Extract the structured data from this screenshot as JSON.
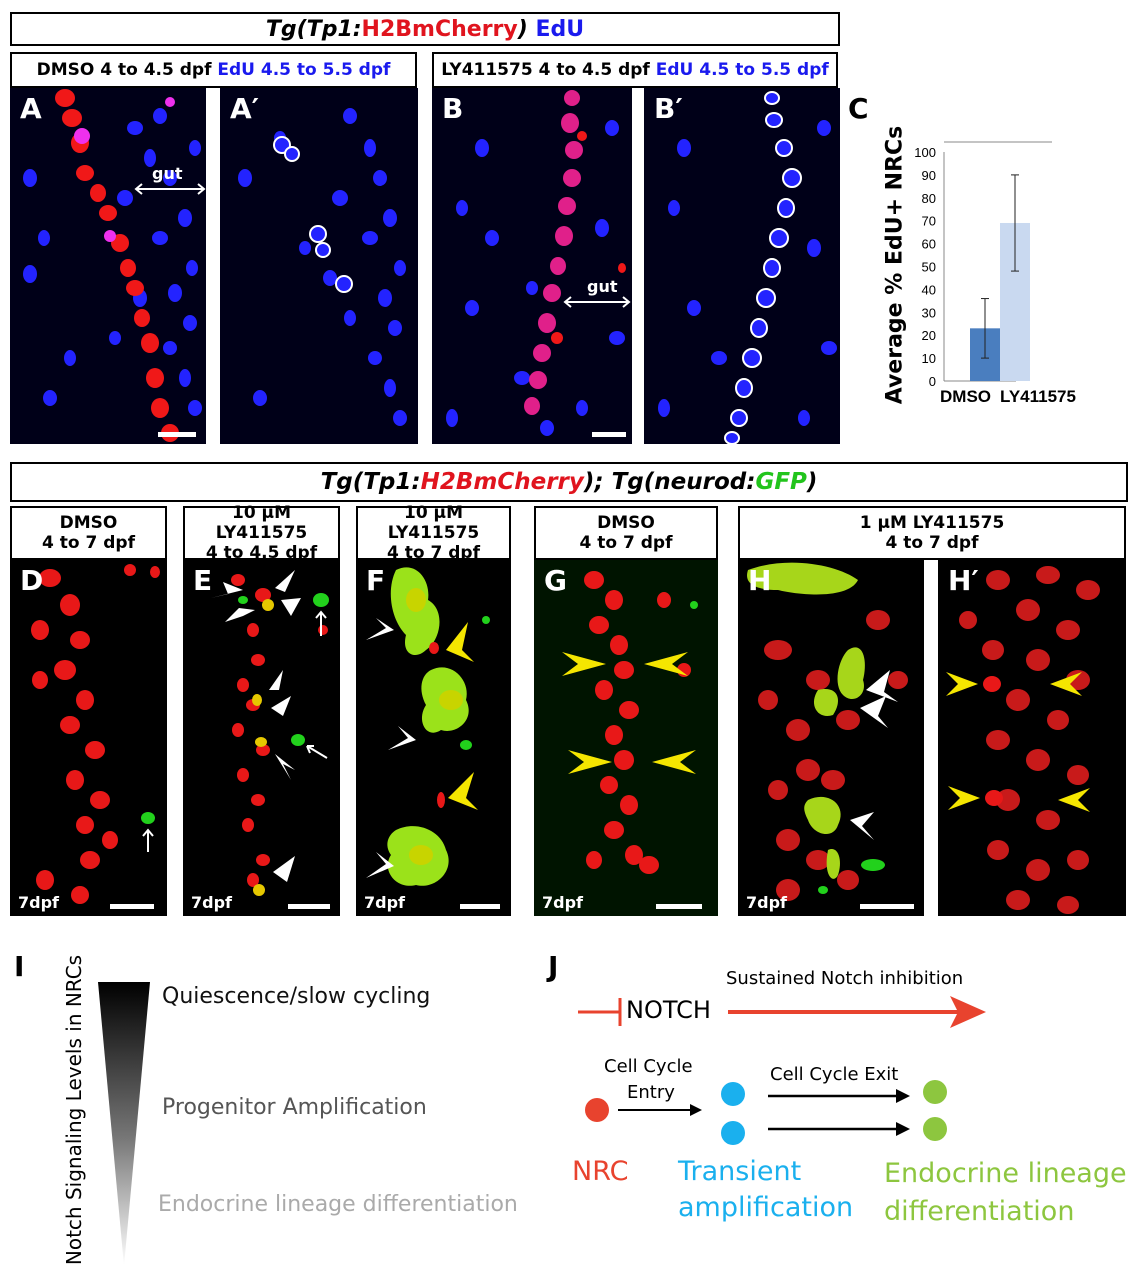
{
  "top_header": {
    "tg": "Tg(Tp1:",
    "reporter": "H2BmCherry",
    "close": ")",
    "marker": "EdU"
  },
  "top_panels": {
    "left_caption": {
      "treatment": "DMSO 4 to 4.5 dpf",
      "edu": "EdU 4.5 to 5.5 dpf"
    },
    "right_caption": {
      "treatment": "LY411575 4 to 4.5 dpf",
      "edu": "EdU 4.5 to 5.5 dpf"
    },
    "labels": [
      "A",
      "A′",
      "B",
      "B′"
    ],
    "gut_label": "gut"
  },
  "chart_label": "C",
  "chart_data": {
    "type": "bar",
    "categories": [
      "DMSO",
      "LY411575"
    ],
    "values": [
      23,
      69
    ],
    "error": [
      [
        10,
        36
      ],
      [
        48,
        90
      ]
    ],
    "ylabel": "Average % EdU+ NRCs",
    "ylim": [
      0,
      100
    ],
    "yticks": [
      "0",
      "10",
      "20",
      "30",
      "40",
      "50",
      "60",
      "70",
      "80",
      "90",
      "100"
    ],
    "colors": [
      "#4a7ebf",
      "#c9d9f0"
    ]
  },
  "mid_header": {
    "p1": "Tg(Tp1:",
    "reporter": "H2BmCherry",
    "p2": "); Tg(neurod:",
    "gfp": "GFP",
    "p3": ")"
  },
  "mid_panels": [
    {
      "label": "D",
      "line1": "DMSO",
      "line2": "4 to 7 dpf",
      "stage": "7dpf"
    },
    {
      "label": "E",
      "line1": "10 μM LY411575",
      "line2": "4 to 4.5 dpf",
      "stage": "7dpf"
    },
    {
      "label": "F",
      "line1": "10 μM LY411575",
      "line2": "4 to 7 dpf",
      "stage": "7dpf"
    },
    {
      "label": "G",
      "line1": "DMSO",
      "line2": "4 to 7 dpf",
      "stage": "7dpf"
    },
    {
      "label": "H",
      "line1": "1 μM LY411575",
      "line2": "4 to 7 dpf",
      "stage": "7dpf"
    },
    {
      "label": "H′",
      "line1": "",
      "line2": "",
      "stage": ""
    }
  ],
  "panel_i": {
    "label": "I",
    "axis": "Notch Signaling Levels in NRCs",
    "levels": [
      "Quiescence/slow cycling",
      "Progenitor Amplification",
      "Endocrine lineage differentiation"
    ]
  },
  "panel_j": {
    "label": "J",
    "notch": "NOTCH",
    "sustained": "Sustained Notch inhibition",
    "entry1": "Cell Cycle",
    "entry2": "Entry",
    "exit": "Cell Cycle Exit",
    "nrc": "NRC",
    "transient1": "Transient",
    "transient2": "amplification",
    "endo1": "Endocrine lineage",
    "endo2": "differentiation",
    "colors": {
      "red": "#e8432e",
      "blue": "#1ab0ee",
      "green": "#8dc63f"
    }
  }
}
